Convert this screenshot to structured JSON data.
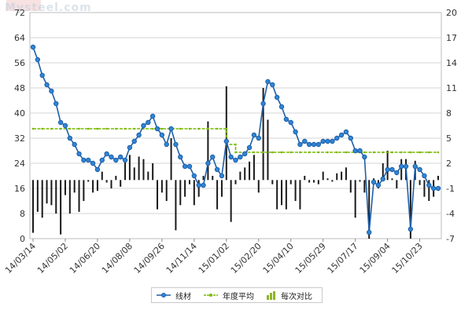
{
  "watermark": "Mysteel.com",
  "colors": {
    "price_line": "#1f5fa8",
    "price_marker": "#2f86d6",
    "avg_line": "#7ab800",
    "bars": "#1a1a1a",
    "grid": "#d6d6d6",
    "axis_text": "#333333"
  },
  "chart_data": {
    "type": "line",
    "title": "",
    "xlabel": "",
    "ylabel": "",
    "y_left": {
      "min": 0,
      "max": 72,
      "ticks": [
        "0",
        "8",
        "16",
        "24",
        "32",
        "40",
        "48",
        "56",
        "64",
        "72"
      ]
    },
    "y_right": {
      "min": -7,
      "max": 20,
      "ticks": [
        "-7",
        "-4",
        "-1",
        "2",
        "5",
        "8",
        "11",
        "14",
        "17",
        "20"
      ]
    },
    "x_tick_labels": [
      "14/03/14",
      "14/05/02",
      "14/06/20",
      "14/08/08",
      "14/09/26",
      "14/11/14",
      "15/01/02",
      "15/02/20",
      "15/04/10",
      "15/05/29",
      "15/07/17",
      "15/09/04",
      "15/10/23"
    ],
    "num_points": 89,
    "x_tick_indices": [
      0,
      7,
      14,
      21,
      28,
      35,
      42,
      49,
      56,
      63,
      70,
      77,
      84
    ],
    "grid": true,
    "legend_position": "bottom-center",
    "legend": [
      "线材",
      "年度平均",
      "每次对比"
    ],
    "series": [
      {
        "name": "线材",
        "kind": "line-marker",
        "axis": "left",
        "values": [
          61,
          57,
          52,
          49,
          47,
          43,
          37,
          36,
          32,
          30,
          27,
          25,
          25,
          24,
          22,
          25,
          27,
          26,
          25,
          26,
          25,
          29,
          31,
          33,
          36,
          37,
          39,
          35,
          33,
          30,
          35,
          30,
          26,
          23,
          23,
          20,
          17,
          17,
          24,
          26,
          22,
          20,
          31,
          26,
          25,
          26,
          27,
          29,
          33,
          32,
          43,
          50,
          49,
          45,
          42,
          38,
          37,
          34,
          30,
          31,
          30,
          30,
          30,
          31,
          31,
          31,
          32,
          33,
          34,
          32,
          28,
          28,
          26,
          2,
          18,
          17,
          19,
          22,
          22,
          21,
          23,
          23,
          3,
          23,
          22,
          20,
          17,
          16,
          16
        ]
      },
      {
        "name": "年度平均",
        "kind": "step-line",
        "axis": "left",
        "segments": [
          {
            "from": 0,
            "to": 42,
            "value": 35
          },
          {
            "from": 42,
            "to": 44,
            "value": 30
          },
          {
            "from": 44,
            "to": 88,
            "value": 27.5
          }
        ]
      },
      {
        "name": "每次对比",
        "kind": "bar",
        "axis": "right",
        "values": [
          -6.3,
          -3.8,
          -4.5,
          -2.8,
          -3.0,
          -4.0,
          -6.5,
          -1.8,
          -4.0,
          -1.5,
          -3.8,
          -2.5,
          -0.2,
          -1.5,
          -1.3,
          1.0,
          -0.3,
          -1.0,
          0.5,
          -0.8,
          2.5,
          3.0,
          1.5,
          2.8,
          2.5,
          1.0,
          2.0,
          -3.5,
          -1.5,
          -2.5,
          5.0,
          -6.0,
          -3.0,
          -2.0,
          -0.5,
          -3.0,
          -2.0,
          0.5,
          7.0,
          0.5,
          -3.5,
          -2.0,
          11.2,
          -5.0,
          -0.5,
          1.0,
          1.5,
          2.2,
          3.0,
          -1.5,
          11.0,
          7.2,
          -0.5,
          -3.5,
          -3.0,
          -3.5,
          -0.5,
          -2.5,
          -3.5,
          0.5,
          -0.3,
          -0.3,
          -0.5,
          1.0,
          0.2,
          -0.2,
          0.8,
          1.0,
          1.5,
          -1.5,
          -4.5,
          -0.2,
          -1.5,
          -7.0,
          0.2,
          -1.0,
          2.0,
          3.5,
          0.2,
          -1.0,
          2.5,
          2.5,
          -7.0,
          2.3,
          -0.6,
          -2.0,
          -2.5,
          -2.0,
          0.5
        ]
      }
    ]
  }
}
